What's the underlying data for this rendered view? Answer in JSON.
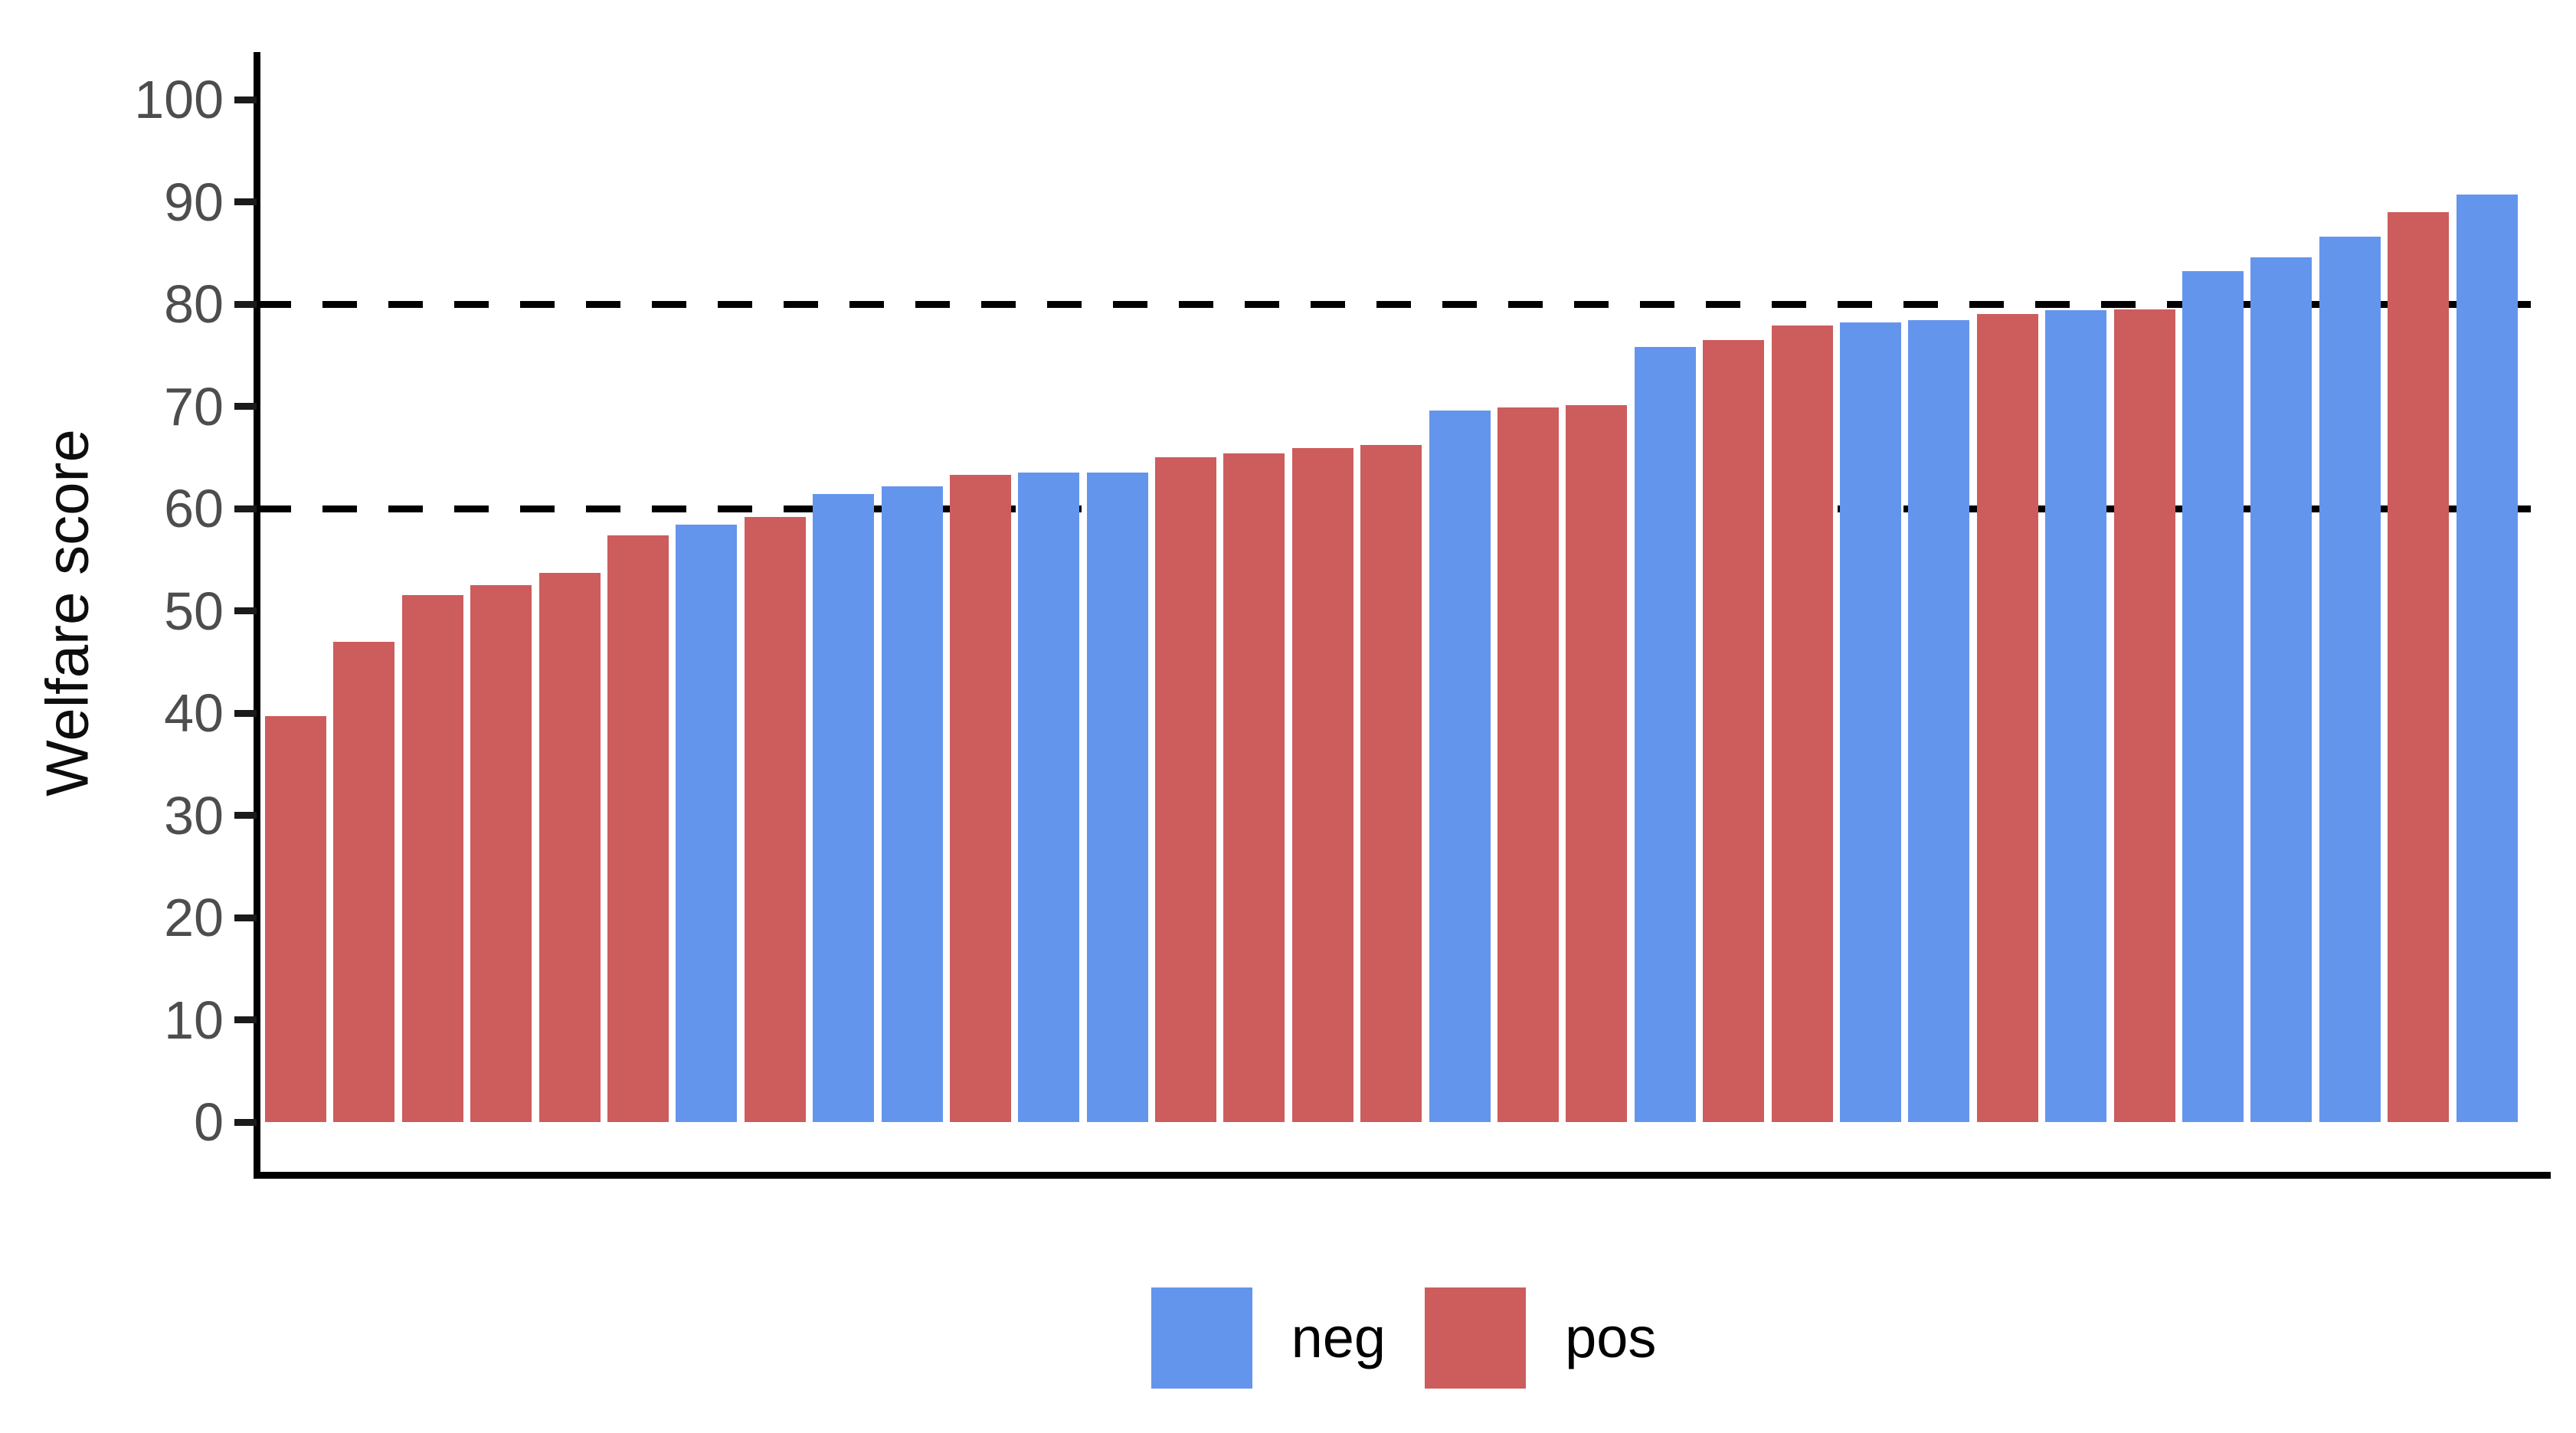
{
  "chart_data": {
    "type": "bar",
    "title": "",
    "xlabel": "",
    "ylabel": "Welfare score",
    "ylim": [
      0,
      105
    ],
    "yticks": [
      "0",
      "10",
      "20",
      "30",
      "40",
      "50",
      "60",
      "70",
      "80",
      "90",
      "100"
    ],
    "ytick_values": [
      0,
      10,
      20,
      30,
      40,
      50,
      60,
      70,
      80,
      90,
      100
    ],
    "reference_lines": [
      60,
      80
    ],
    "reference_line_style": "black dashed",
    "grid": "off",
    "legend_position": "bottom-center",
    "legend": [
      {
        "label": "neg",
        "color": "#6495ED"
      },
      {
        "label": "pos",
        "color": "#CD5C5C"
      }
    ],
    "group_colors": {
      "neg": "#6495ED",
      "pos": "#CD5C5C"
    },
    "bars": [
      {
        "value": 39.7,
        "group": "pos"
      },
      {
        "value": 47.0,
        "group": "pos"
      },
      {
        "value": 51.5,
        "group": "pos"
      },
      {
        "value": 52.5,
        "group": "pos"
      },
      {
        "value": 53.7,
        "group": "pos"
      },
      {
        "value": 57.4,
        "group": "pos"
      },
      {
        "value": 58.4,
        "group": "neg"
      },
      {
        "value": 59.2,
        "group": "pos"
      },
      {
        "value": 61.4,
        "group": "neg"
      },
      {
        "value": 62.2,
        "group": "neg"
      },
      {
        "value": 63.3,
        "group": "pos"
      },
      {
        "value": 63.5,
        "group": "neg"
      },
      {
        "value": 63.5,
        "group": "neg"
      },
      {
        "value": 65.0,
        "group": "pos"
      },
      {
        "value": 65.4,
        "group": "pos"
      },
      {
        "value": 65.9,
        "group": "pos"
      },
      {
        "value": 66.2,
        "group": "pos"
      },
      {
        "value": 69.6,
        "group": "neg"
      },
      {
        "value": 69.9,
        "group": "pos"
      },
      {
        "value": 70.1,
        "group": "pos"
      },
      {
        "value": 75.8,
        "group": "neg"
      },
      {
        "value": 76.5,
        "group": "pos"
      },
      {
        "value": 77.9,
        "group": "pos"
      },
      {
        "value": 78.2,
        "group": "neg"
      },
      {
        "value": 78.4,
        "group": "neg"
      },
      {
        "value": 79.0,
        "group": "pos"
      },
      {
        "value": 79.4,
        "group": "neg"
      },
      {
        "value": 79.5,
        "group": "pos"
      },
      {
        "value": 83.2,
        "group": "neg"
      },
      {
        "value": 84.6,
        "group": "neg"
      },
      {
        "value": 86.6,
        "group": "neg"
      },
      {
        "value": 89.0,
        "group": "pos"
      },
      {
        "value": 90.7,
        "group": "neg"
      }
    ]
  },
  "colors": {
    "axis": "#000000",
    "tick_label": "#4d4d4d",
    "axis_title": "#0d0d0d",
    "reference_line": "#000000",
    "background": "#ffffff"
  }
}
